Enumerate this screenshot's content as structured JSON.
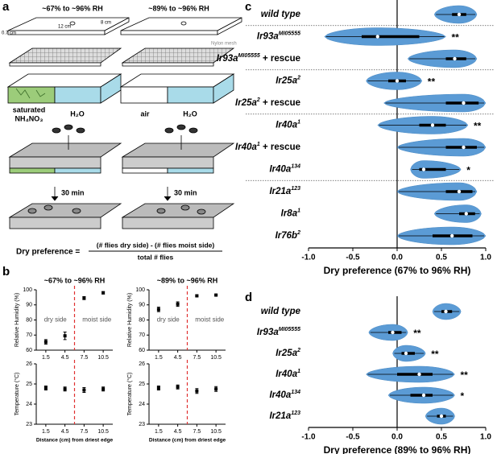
{
  "panel_a": {
    "label": "a",
    "titles": [
      "~67% to ~96% RH",
      "~89% to ~96% RH"
    ],
    "dims": {
      "height": "0.7 cm",
      "length": "12 cm",
      "width": "8 cm"
    },
    "mesh": "Nylon mesh",
    "left_wells": [
      "saturated",
      "NH₄NO₃",
      "H₂O"
    ],
    "right_wells": [
      "air",
      "H₂O"
    ],
    "time": "30 min",
    "formula": {
      "lhs": "Dry preference =",
      "numerator": "(# flies dry side) - (# flies moist side)",
      "denominator": "total # flies"
    }
  },
  "panel_b": {
    "label": "b",
    "xlabel": "Distance (cm) from driest edge",
    "plots": [
      {
        "title": "~67% to ~96% RH",
        "ylabel": "Relative Humidity (%)",
        "dry_label": "dry side",
        "moist_label": "moist side",
        "xlim": [
          0,
          12
        ],
        "xticks": [
          1.5,
          4.5,
          7.5,
          10.5
        ],
        "ylim": [
          60,
          100
        ],
        "yticks": [
          60,
          70,
          80,
          90,
          100
        ],
        "divider": 6,
        "x": [
          1.5,
          4.5,
          7.5,
          10.5
        ],
        "values": [
          65.5,
          69.5,
          94.5,
          98
        ],
        "errors": [
          1.5,
          2.5,
          1,
          0.8
        ]
      },
      {
        "ylabel": "Temperature (°C)",
        "xlim": [
          0,
          12
        ],
        "xticks": [
          1.5,
          4.5,
          7.5,
          10.5
        ],
        "ylim": [
          23,
          26
        ],
        "yticks": [
          23,
          24,
          25,
          26
        ],
        "divider": 6,
        "x": [
          1.5,
          4.5,
          7.5,
          10.5
        ],
        "values": [
          24.8,
          24.75,
          24.7,
          24.75
        ],
        "errors": [
          0.1,
          0.1,
          0.12,
          0.1
        ]
      },
      {
        "title": "~89% to ~96% RH",
        "ylabel": "Relative Humidity (%)",
        "dry_label": "dry side",
        "moist_label": "moist side",
        "xlim": [
          0,
          12
        ],
        "xticks": [
          1.5,
          4.5,
          7.5,
          10.5
        ],
        "ylim": [
          60,
          100
        ],
        "yticks": [
          60,
          70,
          80,
          90,
          100
        ],
        "divider": 6,
        "x": [
          1.5,
          4.5,
          7.5,
          10.5
        ],
        "values": [
          87,
          90.5,
          96,
          96.5
        ],
        "errors": [
          1.5,
          1.5,
          0.5,
          0.3
        ]
      },
      {
        "ylabel": "Temperature (°C)",
        "xlim": [
          0,
          12
        ],
        "xticks": [
          1.5,
          4.5,
          7.5,
          10.5
        ],
        "ylim": [
          23,
          26
        ],
        "yticks": [
          23,
          24,
          25,
          26
        ],
        "divider": 6,
        "x": [
          1.5,
          4.5,
          7.5,
          10.5
        ],
        "values": [
          24.8,
          24.85,
          24.65,
          24.75
        ],
        "errors": [
          0.1,
          0.1,
          0.12,
          0.12
        ]
      }
    ]
  },
  "panel_c": {
    "label": "c",
    "xlabel": "Dry preference (67% to 96% RH)",
    "color": "#5b9bd5",
    "xlim": [
      -1,
      1
    ],
    "xticks": [
      {
        "value": -1,
        "label": "-1.0"
      },
      {
        "value": -0.5,
        "label": "-0.5"
      },
      {
        "value": 0,
        "label": "0.0"
      },
      {
        "value": 0.5,
        "label": "0.5"
      },
      {
        "value": 1,
        "label": "1.0"
      }
    ],
    "groups": [
      [
        {
          "name": "wild type",
          "min": 0.42,
          "q1": 0.62,
          "median": 0.7,
          "q3": 0.78,
          "max": 0.9
        }
      ],
      [
        {
          "name": "Ir93a",
          "allele": "MI05555",
          "min": -0.82,
          "q1": -0.4,
          "median": -0.22,
          "q3": 0.25,
          "max": 0.55,
          "sig": "**"
        },
        {
          "name": "Ir93a",
          "allele": "MI05555",
          "suffix": " + rescue",
          "min": 0.12,
          "q1": 0.55,
          "median": 0.65,
          "q3": 0.78,
          "max": 0.9
        }
      ],
      [
        {
          "name": "Ir25a",
          "allele": "2",
          "min": -0.35,
          "q1": -0.1,
          "median": 0.0,
          "q3": 0.1,
          "max": 0.28,
          "sig": "**"
        },
        {
          "name": "Ir25a",
          "allele": "2",
          "suffix": " + rescue",
          "min": -0.15,
          "q1": 0.55,
          "median": 0.75,
          "q3": 0.92,
          "max": 1.0
        }
      ],
      [
        {
          "name": "Ir40a",
          "allele": "1",
          "min": -0.22,
          "q1": 0.25,
          "median": 0.4,
          "q3": 0.55,
          "max": 0.8,
          "sig": "**"
        },
        {
          "name": "Ir40a",
          "allele": "1",
          "suffix": " + rescue",
          "min": 0.0,
          "q1": 0.55,
          "median": 0.75,
          "q3": 0.9,
          "max": 1.0
        },
        {
          "name": "Ir40a",
          "allele": "134",
          "min": 0.15,
          "q1": 0.25,
          "median": 0.3,
          "q3": 0.55,
          "max": 0.72,
          "sig": "*"
        }
      ],
      [
        {
          "name": "Ir21a",
          "allele": "123",
          "min": 0.0,
          "q1": 0.55,
          "median": 0.7,
          "q3": 0.85,
          "max": 0.9
        },
        {
          "name": "Ir8a",
          "allele": "1",
          "min": 0.42,
          "q1": 0.7,
          "median": 0.78,
          "q3": 0.88,
          "max": 0.95
        },
        {
          "name": "Ir76b",
          "allele": "2",
          "min": 0.0,
          "q1": 0.4,
          "median": 0.62,
          "q3": 0.85,
          "max": 1.0
        }
      ]
    ]
  },
  "panel_d": {
    "label": "d",
    "xlabel": "Dry preference (89% to 96% RH)",
    "color": "#5b9bd5",
    "xlim": [
      -1,
      1
    ],
    "xticks": [
      {
        "value": -1,
        "label": "-1.0"
      },
      {
        "value": -0.5,
        "label": "-0.5"
      },
      {
        "value": 0,
        "label": "0.0"
      },
      {
        "value": 0.5,
        "label": "0.5"
      },
      {
        "value": 1,
        "label": "1.0"
      }
    ],
    "groups": [
      [
        {
          "name": "wild type",
          "min": 0.4,
          "q1": 0.5,
          "median": 0.55,
          "q3": 0.62,
          "max": 0.72
        },
        {
          "name": "Ir93a",
          "allele": "MI05555",
          "min": -0.32,
          "q1": -0.1,
          "median": -0.05,
          "q3": 0.05,
          "max": 0.12,
          "sig": "**"
        },
        {
          "name": "Ir25a",
          "allele": "2",
          "min": -0.05,
          "q1": 0.05,
          "median": 0.1,
          "q3": 0.2,
          "max": 0.32,
          "sig": "**"
        },
        {
          "name": "Ir40a",
          "allele": "1",
          "min": -0.35,
          "q1": 0.0,
          "median": 0.25,
          "q3": 0.4,
          "max": 0.65,
          "sig": "**"
        },
        {
          "name": "Ir40a",
          "allele": "134",
          "min": -0.1,
          "q1": 0.15,
          "median": 0.3,
          "q3": 0.4,
          "max": 0.65,
          "sig": "*"
        },
        {
          "name": "Ir21a",
          "allele": "123",
          "min": 0.32,
          "q1": 0.45,
          "median": 0.5,
          "q3": 0.55,
          "max": 0.65
        }
      ]
    ]
  }
}
